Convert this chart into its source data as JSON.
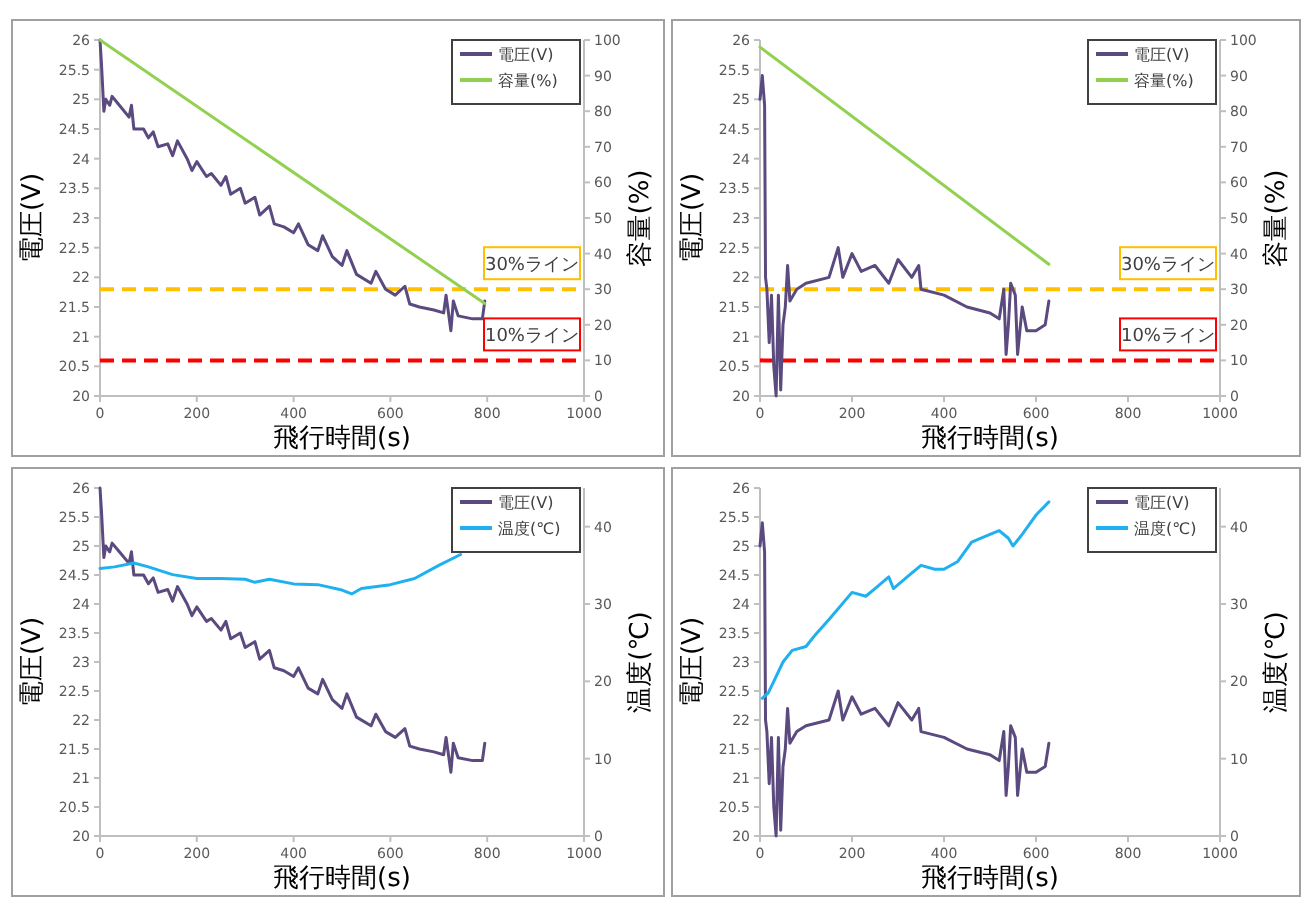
{
  "chart_data": [
    {
      "type": "line",
      "xlabel": "飛行時間(s)",
      "ylabel": "電圧(V)",
      "y2label": "容量(%)",
      "xlim": [
        0,
        1000
      ],
      "xticks": [
        0,
        200,
        400,
        600,
        800,
        1000
      ],
      "ylim": [
        20,
        26
      ],
      "yticks": [
        20,
        20.5,
        21,
        21.5,
        22,
        22.5,
        23,
        23.5,
        24,
        24.5,
        25,
        25.5,
        26
      ],
      "y2lim": [
        0,
        100
      ],
      "y2ticks": [
        0,
        10,
        20,
        30,
        40,
        50,
        60,
        70,
        80,
        90,
        100
      ],
      "legend": "top right",
      "grid": false,
      "marker": "none",
      "series": [
        {
          "name": "電圧(V)",
          "color": "#5b4a7f",
          "x": [
            0,
            3,
            8,
            12,
            20,
            25,
            40,
            60,
            65,
            70,
            90,
            100,
            110,
            120,
            140,
            150,
            160,
            180,
            190,
            200,
            220,
            230,
            250,
            260,
            270,
            290,
            300,
            320,
            330,
            350,
            360,
            380,
            400,
            410,
            430,
            450,
            460,
            480,
            500,
            510,
            530,
            560,
            570,
            590,
            610,
            630,
            640,
            660,
            690,
            710,
            715,
            725,
            730,
            740,
            770,
            790,
            795
          ],
          "values": [
            26.0,
            25.6,
            24.8,
            25.0,
            24.9,
            25.05,
            24.9,
            24.7,
            24.9,
            24.5,
            24.5,
            24.35,
            24.45,
            24.2,
            24.25,
            24.05,
            24.3,
            24.0,
            23.8,
            23.95,
            23.7,
            23.75,
            23.55,
            23.7,
            23.4,
            23.5,
            23.25,
            23.35,
            23.05,
            23.2,
            22.9,
            22.85,
            22.75,
            22.9,
            22.55,
            22.45,
            22.7,
            22.35,
            22.2,
            22.45,
            22.05,
            21.9,
            22.1,
            21.8,
            21.7,
            21.85,
            21.55,
            21.5,
            21.45,
            21.4,
            21.7,
            21.1,
            21.6,
            21.35,
            21.3,
            21.3,
            21.6
          ]
        },
        {
          "name": "容量(%)",
          "color": "#92d050",
          "axis": "y2",
          "x": [
            0,
            795
          ],
          "values": [
            100,
            26
          ]
        }
      ],
      "ref_lines": [
        {
          "axis": "y2",
          "value": 30,
          "label": "30%ライン",
          "color": "#ffc000",
          "line_style": "dashed"
        },
        {
          "axis": "y2",
          "value": 10,
          "label": "10%ライン",
          "color": "#ff0000",
          "line_style": "dashed"
        }
      ]
    },
    {
      "type": "line",
      "xlabel": "飛行時間(s)",
      "ylabel": "電圧(V)",
      "y2label": "容量(%)",
      "xlim": [
        0,
        1000
      ],
      "xticks": [
        0,
        200,
        400,
        600,
        800,
        1000
      ],
      "ylim": [
        20,
        26
      ],
      "yticks": [
        20,
        20.5,
        21,
        21.5,
        22,
        22.5,
        23,
        23.5,
        24,
        24.5,
        25,
        25.5,
        26
      ],
      "y2lim": [
        0,
        100
      ],
      "y2ticks": [
        0,
        10,
        20,
        30,
        40,
        50,
        60,
        70,
        80,
        90,
        100
      ],
      "legend": "top right",
      "grid": false,
      "marker": "none",
      "series": [
        {
          "name": "電圧(V)",
          "color": "#5b4a7f",
          "x": [
            0,
            5,
            10,
            12,
            15,
            20,
            25,
            30,
            35,
            40,
            45,
            50,
            55,
            60,
            65,
            80,
            100,
            150,
            170,
            180,
            200,
            220,
            250,
            280,
            300,
            330,
            345,
            350,
            400,
            450,
            500,
            520,
            530,
            535,
            540,
            545,
            555,
            560,
            570,
            580,
            600,
            620,
            628
          ],
          "values": [
            25.0,
            25.4,
            24.9,
            22.0,
            21.8,
            20.9,
            21.7,
            20.5,
            20.0,
            21.7,
            20.1,
            21.2,
            21.5,
            22.2,
            21.6,
            21.8,
            21.9,
            22.0,
            22.5,
            22.0,
            22.4,
            22.1,
            22.2,
            21.9,
            22.3,
            22.0,
            22.2,
            21.8,
            21.7,
            21.5,
            21.4,
            21.3,
            21.8,
            20.7,
            21.2,
            21.9,
            21.7,
            20.7,
            21.5,
            21.1,
            21.1,
            21.2,
            21.6
          ]
        },
        {
          "name": "容量(%)",
          "color": "#92d050",
          "axis": "y2",
          "x": [
            0,
            628
          ],
          "values": [
            98,
            37
          ]
        }
      ],
      "ref_lines": [
        {
          "axis": "y2",
          "value": 30,
          "label": "30%ライン",
          "color": "#ffc000",
          "line_style": "dashed"
        },
        {
          "axis": "y2",
          "value": 10,
          "label": "10%ライン",
          "color": "#ff0000",
          "line_style": "dashed"
        }
      ]
    },
    {
      "type": "line",
      "xlabel": "飛行時間(s)",
      "ylabel": "電圧(V)",
      "y2label": "温度(℃)",
      "xlim": [
        0,
        1000
      ],
      "xticks": [
        0,
        200,
        400,
        600,
        800,
        1000
      ],
      "ylim": [
        20,
        26
      ],
      "yticks": [
        20,
        20.5,
        21,
        21.5,
        22,
        22.5,
        23,
        23.5,
        24,
        24.5,
        25,
        25.5,
        26
      ],
      "y2lim": [
        0,
        45
      ],
      "y2ticks": [
        0,
        10,
        20,
        30,
        40
      ],
      "legend": "top right",
      "grid": false,
      "marker": "none",
      "series": [
        {
          "name": "電圧(V)",
          "color": "#5b4a7f",
          "x": [
            0,
            3,
            8,
            12,
            20,
            25,
            40,
            60,
            65,
            70,
            90,
            100,
            110,
            120,
            140,
            150,
            160,
            180,
            190,
            200,
            220,
            230,
            250,
            260,
            270,
            290,
            300,
            320,
            330,
            350,
            360,
            380,
            400,
            410,
            430,
            450,
            460,
            480,
            500,
            510,
            530,
            560,
            570,
            590,
            610,
            630,
            640,
            660,
            690,
            710,
            715,
            725,
            730,
            740,
            770,
            790,
            795
          ],
          "values": [
            26.0,
            25.6,
            24.8,
            25.0,
            24.9,
            25.05,
            24.9,
            24.7,
            24.9,
            24.5,
            24.5,
            24.35,
            24.45,
            24.2,
            24.25,
            24.05,
            24.3,
            24.0,
            23.8,
            23.95,
            23.7,
            23.75,
            23.55,
            23.7,
            23.4,
            23.5,
            23.25,
            23.35,
            23.05,
            23.2,
            22.9,
            22.85,
            22.75,
            22.9,
            22.55,
            22.45,
            22.7,
            22.35,
            22.2,
            22.45,
            22.05,
            21.9,
            22.1,
            21.8,
            21.7,
            21.85,
            21.55,
            21.5,
            21.45,
            21.4,
            21.7,
            21.1,
            21.6,
            21.35,
            21.3,
            21.3,
            21.6
          ]
        },
        {
          "name": "温度(℃)",
          "color": "#1fb0f0",
          "axis": "y2",
          "x": [
            0,
            30,
            70,
            100,
            150,
            200,
            250,
            300,
            320,
            350,
            400,
            450,
            500,
            520,
            540,
            600,
            650,
            700,
            745
          ],
          "values": [
            34.6,
            34.8,
            35.3,
            34.8,
            33.8,
            33.3,
            33.3,
            33.2,
            32.8,
            33.2,
            32.6,
            32.5,
            31.8,
            31.3,
            32.0,
            32.5,
            33.3,
            35.0,
            36.4
          ]
        }
      ]
    },
    {
      "type": "line",
      "xlabel": "飛行時間(s)",
      "ylabel": "電圧(V)",
      "y2label": "温度(℃)",
      "xlim": [
        0,
        1000
      ],
      "xticks": [
        0,
        200,
        400,
        600,
        800,
        1000
      ],
      "ylim": [
        20,
        26
      ],
      "yticks": [
        20,
        20.5,
        21,
        21.5,
        22,
        22.5,
        23,
        23.5,
        24,
        24.5,
        25,
        25.5,
        26
      ],
      "y2lim": [
        0,
        45
      ],
      "y2ticks": [
        0,
        10,
        20,
        30,
        40
      ],
      "legend": "top right",
      "grid": false,
      "marker": "none",
      "series": [
        {
          "name": "電圧(V)",
          "color": "#5b4a7f",
          "x": [
            0,
            5,
            10,
            12,
            15,
            20,
            25,
            30,
            35,
            40,
            45,
            50,
            55,
            60,
            65,
            80,
            100,
            150,
            170,
            180,
            200,
            220,
            250,
            280,
            300,
            330,
            345,
            350,
            400,
            450,
            500,
            520,
            530,
            535,
            540,
            545,
            555,
            560,
            570,
            580,
            600,
            620,
            628
          ],
          "values": [
            25.0,
            25.4,
            24.9,
            22.0,
            21.8,
            20.9,
            21.7,
            20.5,
            20.0,
            21.7,
            20.1,
            21.2,
            21.5,
            22.2,
            21.6,
            21.8,
            21.9,
            22.0,
            22.5,
            22.0,
            22.4,
            22.1,
            22.2,
            21.9,
            22.3,
            22.0,
            22.2,
            21.8,
            21.7,
            21.5,
            21.4,
            21.3,
            21.8,
            20.7,
            21.2,
            21.9,
            21.7,
            20.7,
            21.5,
            21.1,
            21.1,
            21.2,
            21.6
          ]
        },
        {
          "name": "温度(℃)",
          "color": "#1fb0f0",
          "axis": "y2",
          "x": [
            5,
            18,
            30,
            50,
            70,
            100,
            120,
            150,
            200,
            230,
            250,
            280,
            290,
            320,
            350,
            380,
            400,
            430,
            460,
            500,
            520,
            540,
            550,
            570,
            600,
            628
          ],
          "values": [
            17.8,
            18.5,
            20.0,
            22.5,
            24.0,
            24.5,
            26.0,
            28.0,
            31.5,
            31.0,
            32.0,
            33.5,
            32.0,
            33.5,
            35.0,
            34.5,
            34.5,
            35.5,
            38.0,
            39.0,
            39.5,
            38.5,
            37.5,
            39.0,
            41.5,
            43.2
          ]
        }
      ]
    }
  ]
}
